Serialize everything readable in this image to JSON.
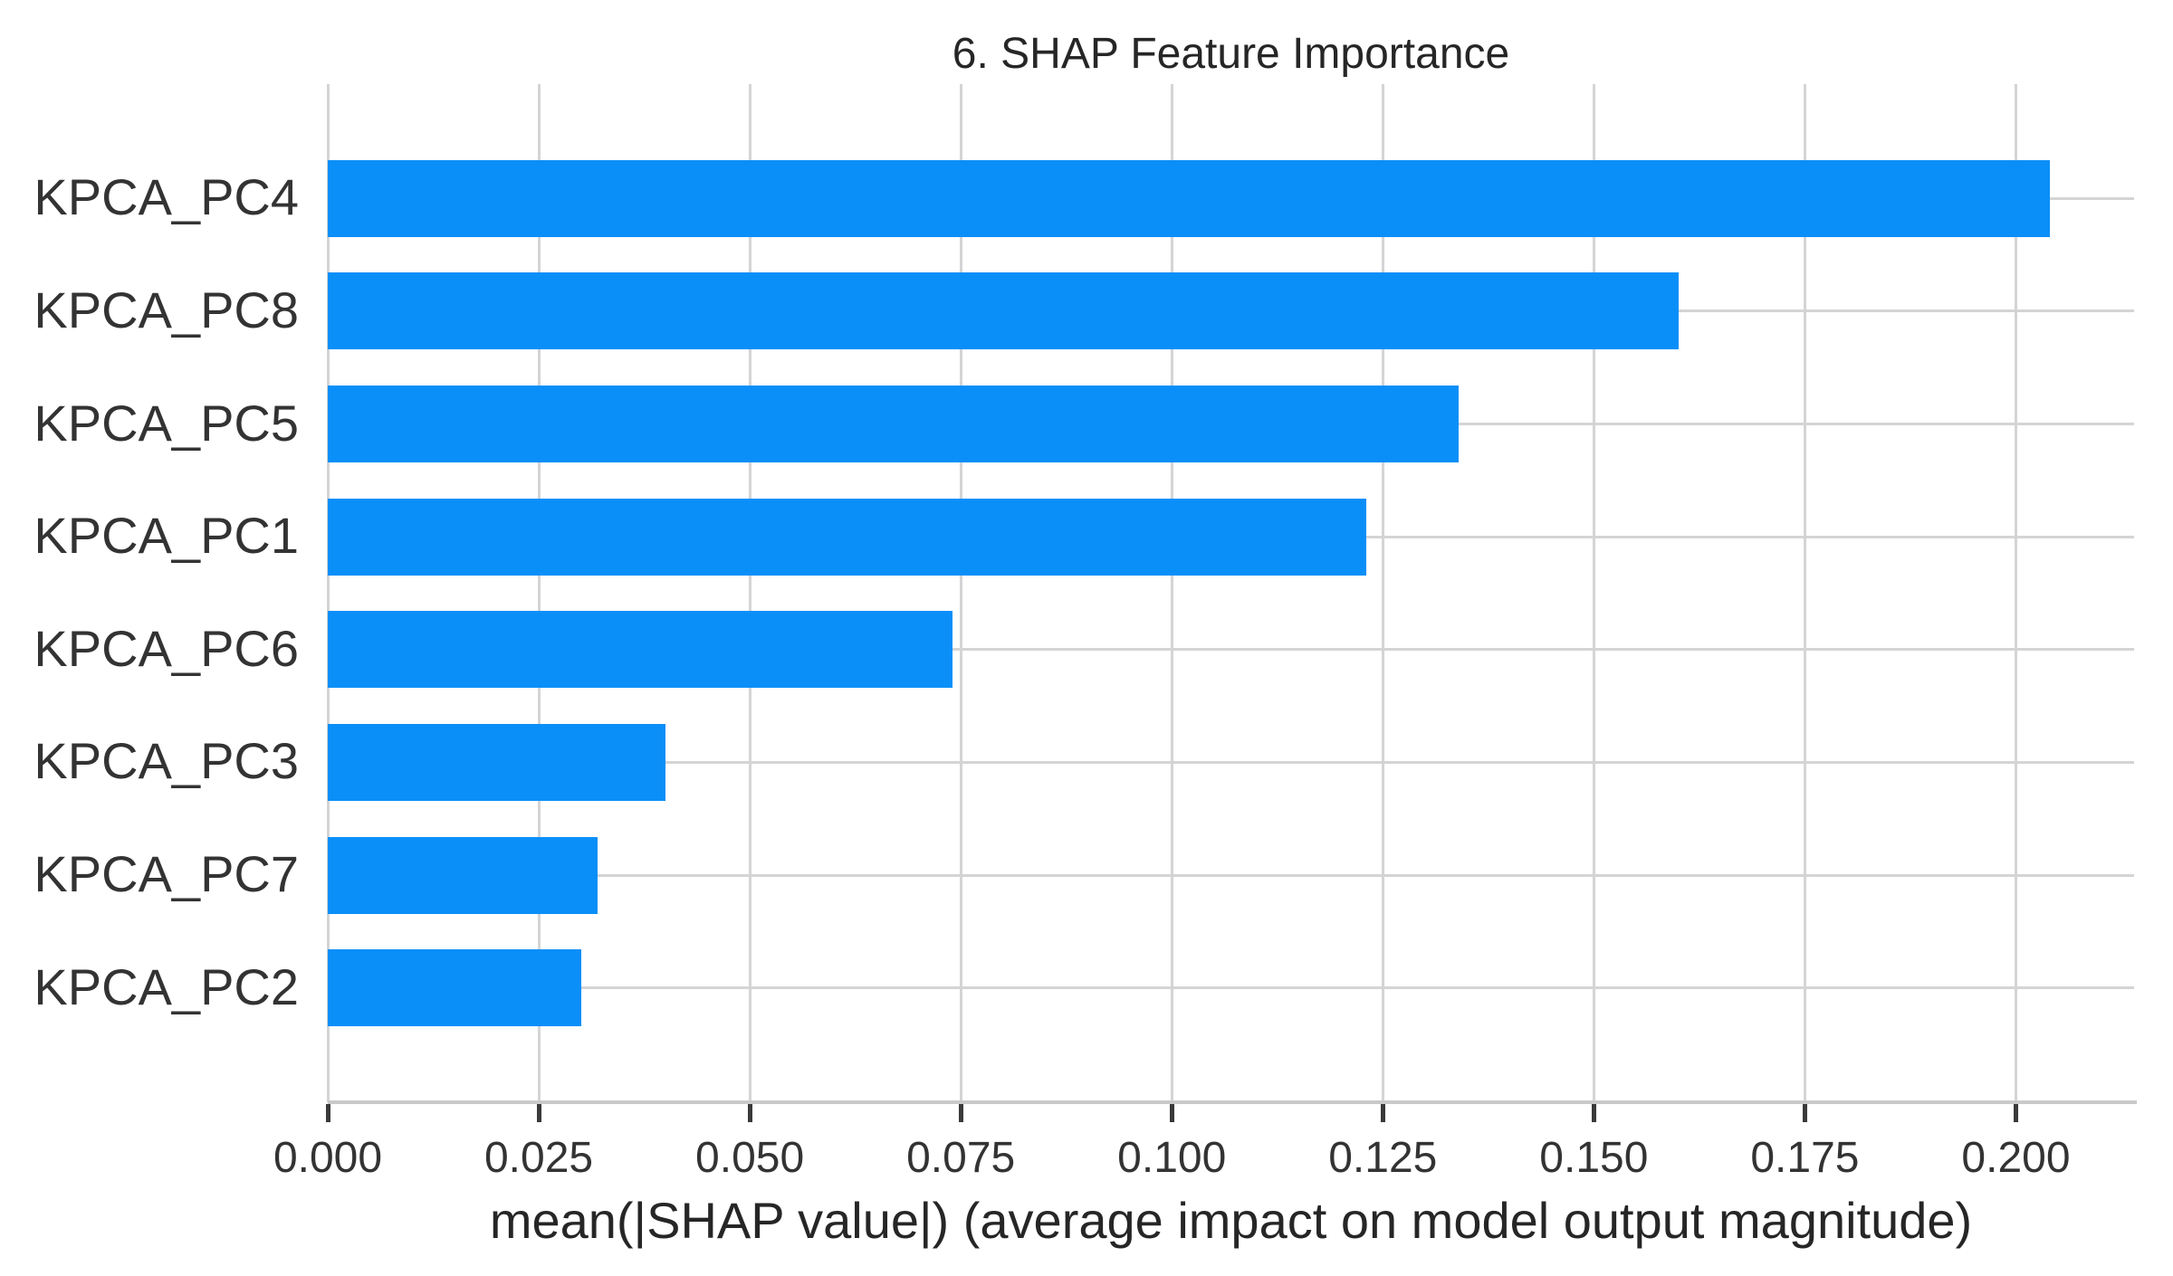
{
  "chart_data": {
    "type": "bar",
    "orientation": "horizontal",
    "title": "6. SHAP Feature Importance",
    "xlabel": "mean(|SHAP value|) (average impact on model output magnitude)",
    "ylabel": "",
    "categories": [
      "KPCA_PC4",
      "KPCA_PC8",
      "KPCA_PC5",
      "KPCA_PC1",
      "KPCA_PC6",
      "KPCA_PC3",
      "KPCA_PC7",
      "KPCA_PC2"
    ],
    "values": [
      0.204,
      0.16,
      0.134,
      0.123,
      0.074,
      0.04,
      0.032,
      0.03
    ],
    "x_tick_labels": [
      "0.000",
      "0.025",
      "0.050",
      "0.075",
      "0.100",
      "0.125",
      "0.150",
      "0.175",
      "0.200"
    ],
    "x_tick_values": [
      0.0,
      0.025,
      0.05,
      0.075,
      0.1,
      0.125,
      0.15,
      0.175,
      0.2
    ],
    "xlim": [
      0,
      0.214
    ],
    "grid": true,
    "legend": false,
    "colors": {
      "bar": "#0a8ff8",
      "grid": "#d4d4d4",
      "spine": "#c9c9c9",
      "tick": "#3a3a3a",
      "tick_text": "#333333",
      "title_text": "#262626"
    }
  }
}
